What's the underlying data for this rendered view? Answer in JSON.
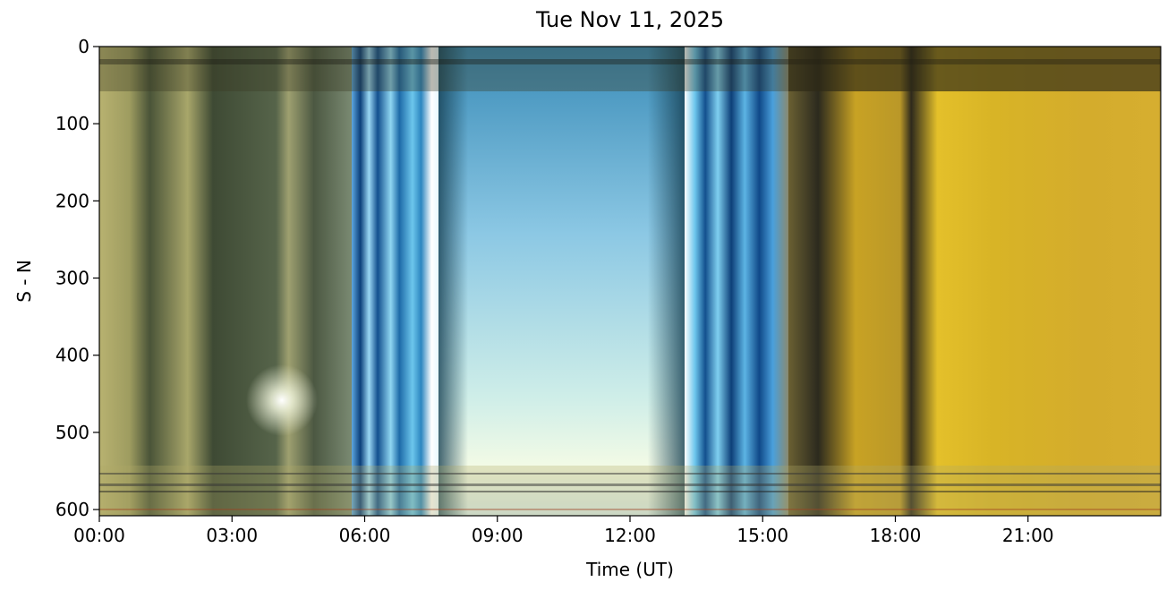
{
  "chart_data": {
    "type": "keogram",
    "title": "Tue Nov 11, 2025",
    "x_label": "Time (UT)",
    "y_label": "S - N",
    "xlim": [
      0,
      24
    ],
    "ylim": [
      608,
      0
    ],
    "xticks": [
      {
        "value": 0,
        "label": "00:00"
      },
      {
        "value": 3,
        "label": "03:00"
      },
      {
        "value": 6,
        "label": "06:00"
      },
      {
        "value": 9,
        "label": "09:00"
      },
      {
        "value": 12,
        "label": "12:00"
      },
      {
        "value": 15,
        "label": "15:00"
      },
      {
        "value": 18,
        "label": "18:00"
      },
      {
        "value": 21,
        "label": "21:00"
      }
    ],
    "yticks": [
      0,
      100,
      200,
      300,
      400,
      500,
      600
    ]
  }
}
